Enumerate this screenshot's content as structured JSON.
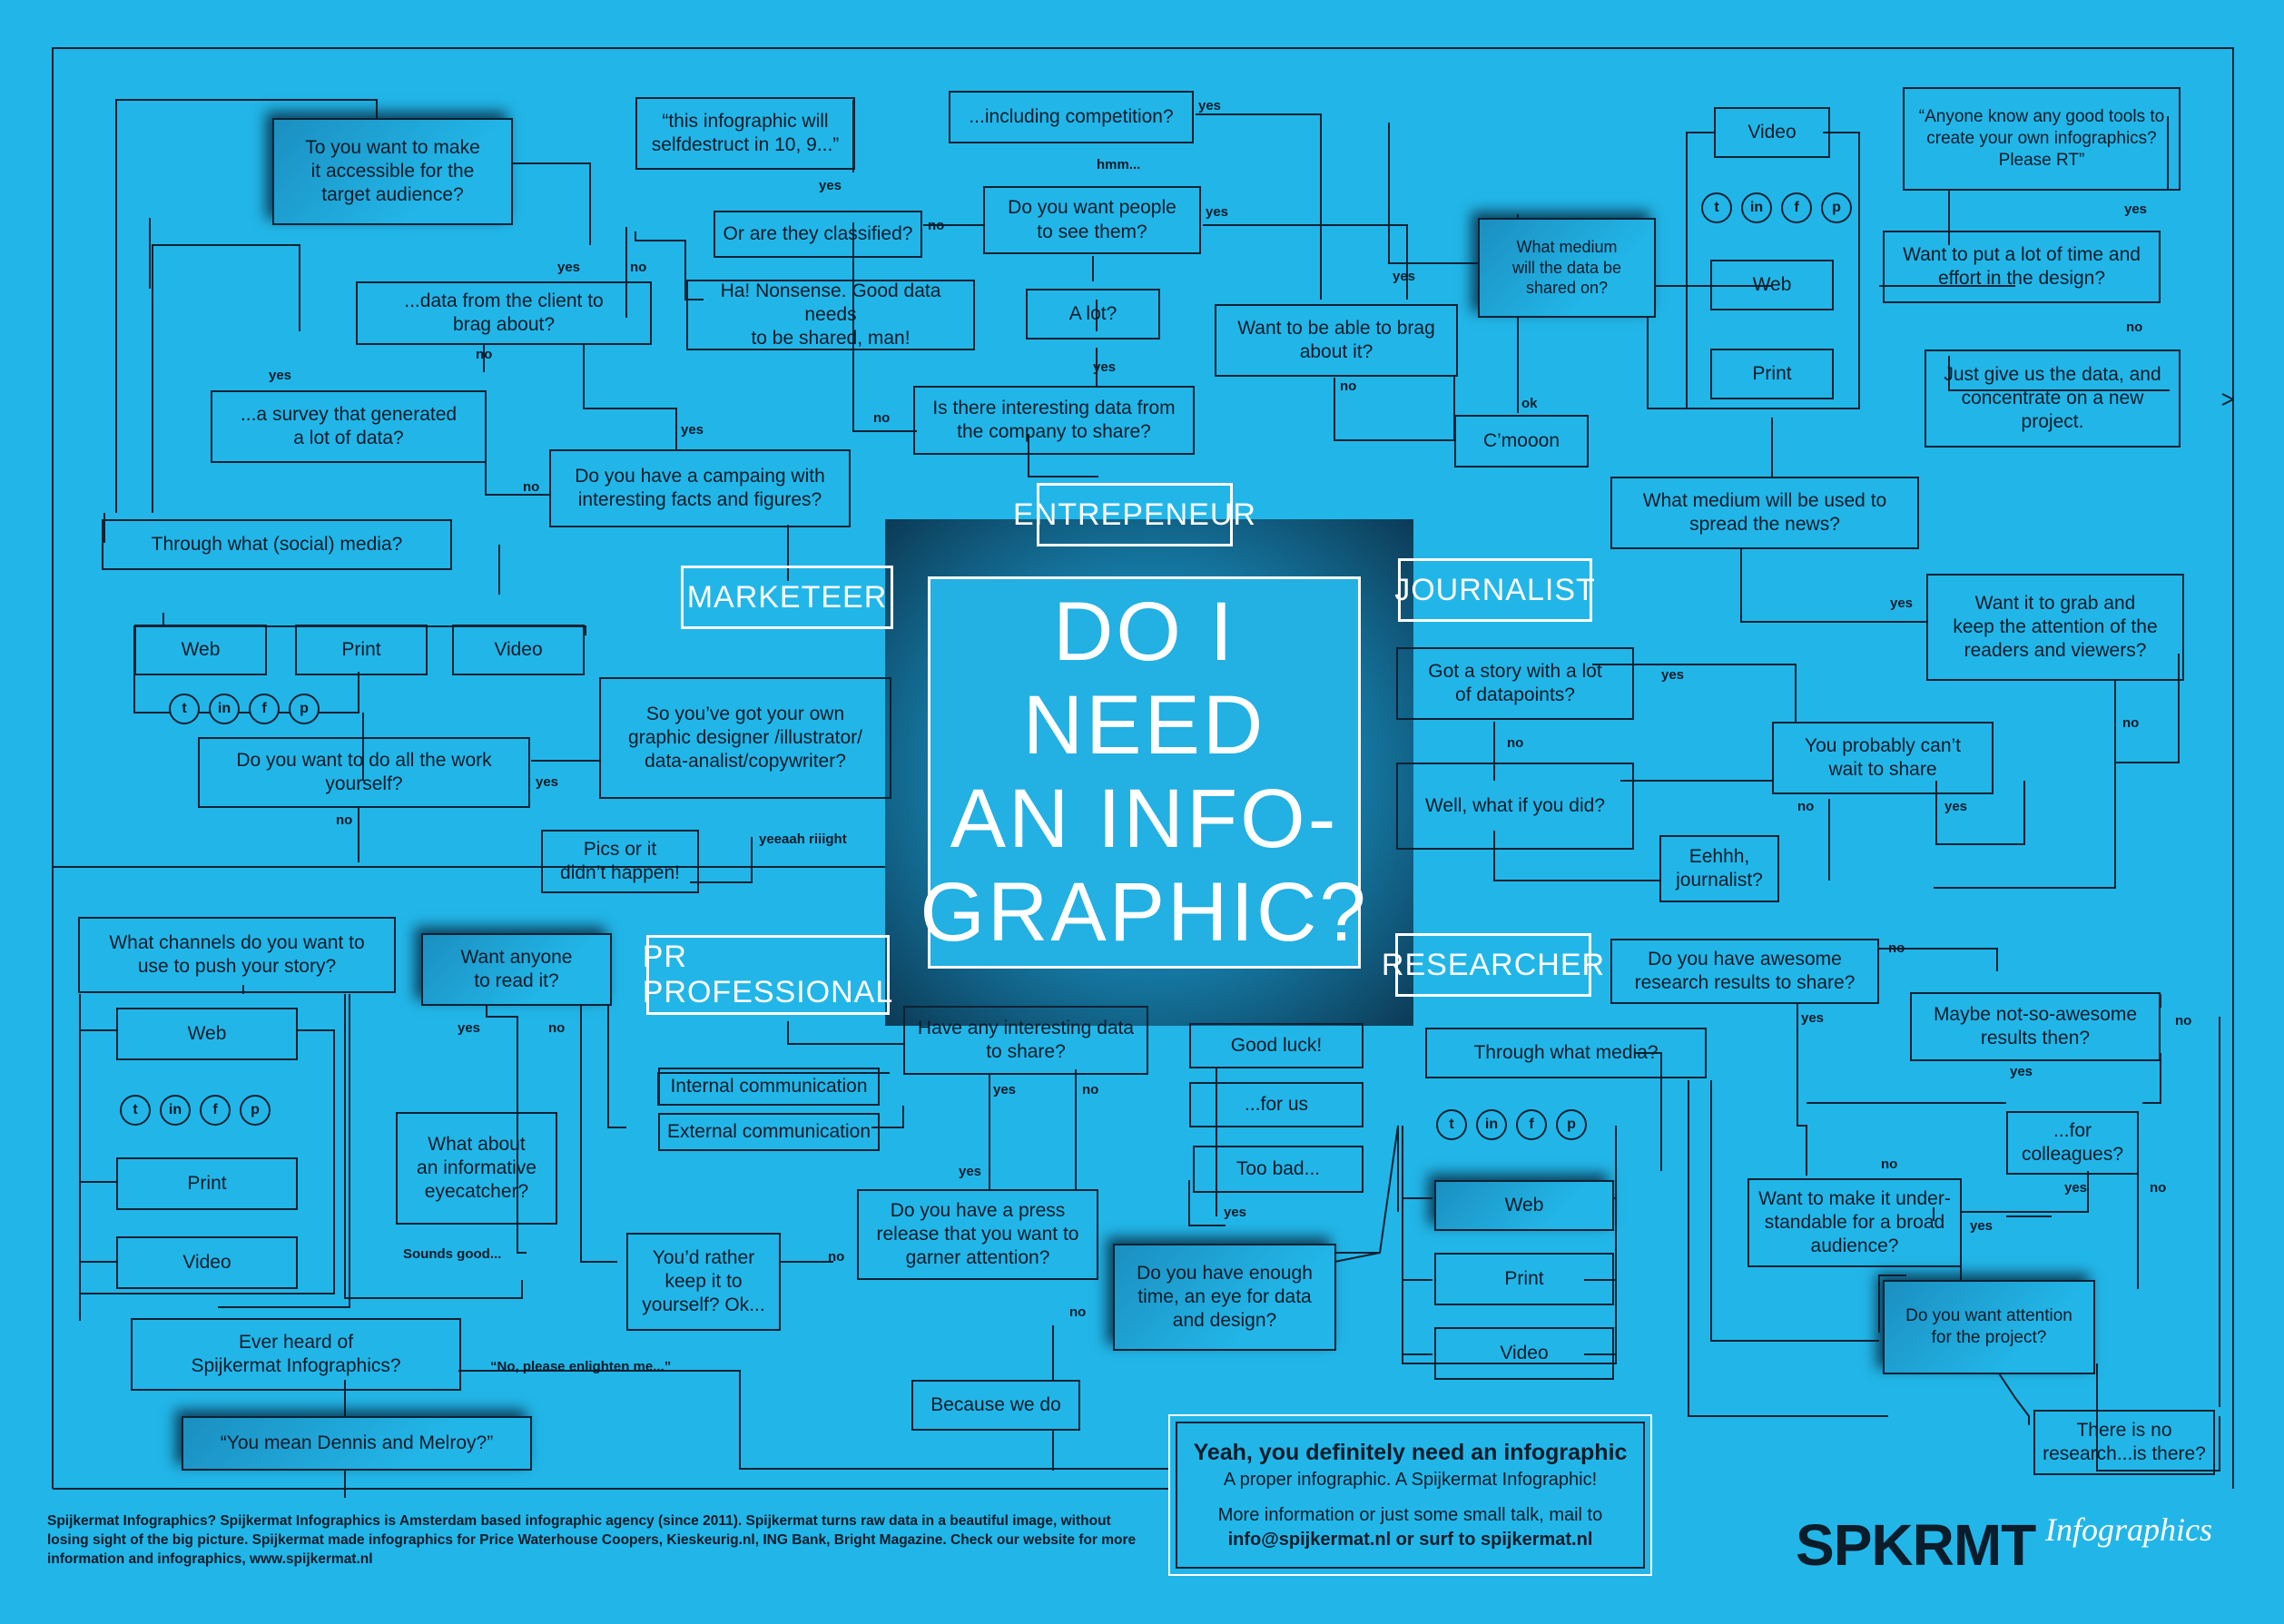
{
  "center_title": "DO I NEED\nAN INFO-\nGRAPHIC?",
  "roles": {
    "entrepreneur": "ENTREPENEUR",
    "marketeer": "MARKETEER",
    "journalist": "JOURNALIST",
    "pr": "PR PROFESSIONAL",
    "researcher": "RESEARCHER"
  },
  "boxes": {
    "selfdestruct": "“this infographic will\nselfdestruct in 10, 9...”",
    "competition": "...including competition?",
    "see_them": "Do you want people\nto see them?",
    "classified": "Or are they classified?",
    "nonsense": "Ha! Nonsense. Good data needs\nto be shared, man!",
    "a_lot": "A lot?",
    "company_data": "Is there interesting data from\nthe company to share?",
    "brag_able": "Want to be able to brag\nabout it?",
    "cmooon": "C’mooon",
    "what_medium_shared": "What medium\nwill the data be\nshared on?",
    "accessible": "To you want to make\nit accessible for the\ntarget audience?",
    "client_data": "...data from the client to\nbrag about?",
    "survey": "...a survey that generated\na lot of data?",
    "campaign": "Do you have a campaing with\ninteresting facts and figures?",
    "social_media": "Through what (social) media?",
    "m_web": "Web",
    "m_print": "Print",
    "m_video": "Video",
    "do_all_work": "Do you want to do all the work\nyourself?",
    "own_designer": "So you’ve got your own\ngraphic designer /illustrator/\ndata-analist/copywriter?",
    "pics": "Pics or it\ndidn’t happen!",
    "j_video": "Video",
    "j_web": "Web",
    "j_print": "Print",
    "good_tools": "“Anyone know any good tools to\ncreate your own infographics?\nPlease RT”",
    "time_effort": "Want to put a lot of time and\neffort in the design?",
    "just_data": "Just give us the data, and\nconcentrate on a new\nproject.",
    "spread_news": "What medium will be used to\nspread the news?",
    "grab_attention": "Want it to grab and\nkeep the attention of the\nreaders and viewers?",
    "story_datapoints": "Got a story with a lot\nof datapoints?",
    "cant_wait": "You probably can’t\nwait to share",
    "what_if": "Well,  what if you did?",
    "ehhh": "Eehhh,\njournalist?",
    "channels": "What channels do you want to\nuse to push your story?",
    "p_web": "Web",
    "p_print": "Print",
    "p_video": "Video",
    "want_anyone": "Want anyone\nto read it?",
    "eyecatcher": "What about\nan informative\neyecatcher?",
    "interesting_share": "Have any interesting data\nto share?",
    "internal": "Internal communication",
    "external": "External communication",
    "press_release": "Do you have a press\nrelease that you want to\ngarner attention?",
    "keep_it": "You’d rather\nkeep it to\nyourself? Ok...",
    "ever_heard": "Ever heard of\nSpijkermat Infographics?",
    "dennis": "“You mean Dennis and Melroy?”",
    "good_luck": "Good luck!",
    "for_us": "...for us",
    "too_bad": "Too bad...",
    "enough_time": "Do you have enough\ntime, an eye for data\nand design?",
    "because": "Because we do",
    "through_what": "Through what media?",
    "r_web": "Web",
    "r_print": "Print",
    "r_video": "Video",
    "awesome": "Do you have awesome\nresearch results to share?",
    "not_so": "Maybe not-so-awesome\nresults then?",
    "colleagues": "...for\ncolleagues?",
    "understandable": "Want to make it under-\nstandable for a broad\naudience?",
    "attention_project": "Do you want attention\nfor the project?",
    "no_research": "There is no\nresearch...is there?"
  },
  "labels": {
    "yes": "yes",
    "no": "no",
    "hmm": "hmm...",
    "ok": "ok",
    "yeeaah": "yeeaah riiight",
    "sounds_good": "Sounds good...",
    "enlighten": "“No, please enlighten me...”"
  },
  "social_icons": [
    "t",
    "in",
    "f",
    "p"
  ],
  "final": {
    "line1": "Yeah, you definitely need an infographic",
    "line2": "A proper infographic. A Spijkermat Infographic!",
    "line3": "More information or just some small talk, mail to",
    "line4": "info@spijkermat.nl or surf to spijkermat.nl"
  },
  "footer": "Spijkermat Infographics? Spijkermat Infographics is Amsterdam based infographic agency (since 2011). Spijkermat turns raw data in a beautiful image, without losing sight of the big picture. Spijkermat made infographics for Price Waterhouse Coopers, Kieskeurig.nl, ING Bank, Bright Magazine. Check our website for more information and infographics, www.spijkermat.nl",
  "logo": {
    "main": "SPKRMT",
    "sub": "Infographics"
  },
  "colors": {
    "background": "#22b6e8",
    "ink": "#0d2233",
    "white": "#ffffff"
  }
}
